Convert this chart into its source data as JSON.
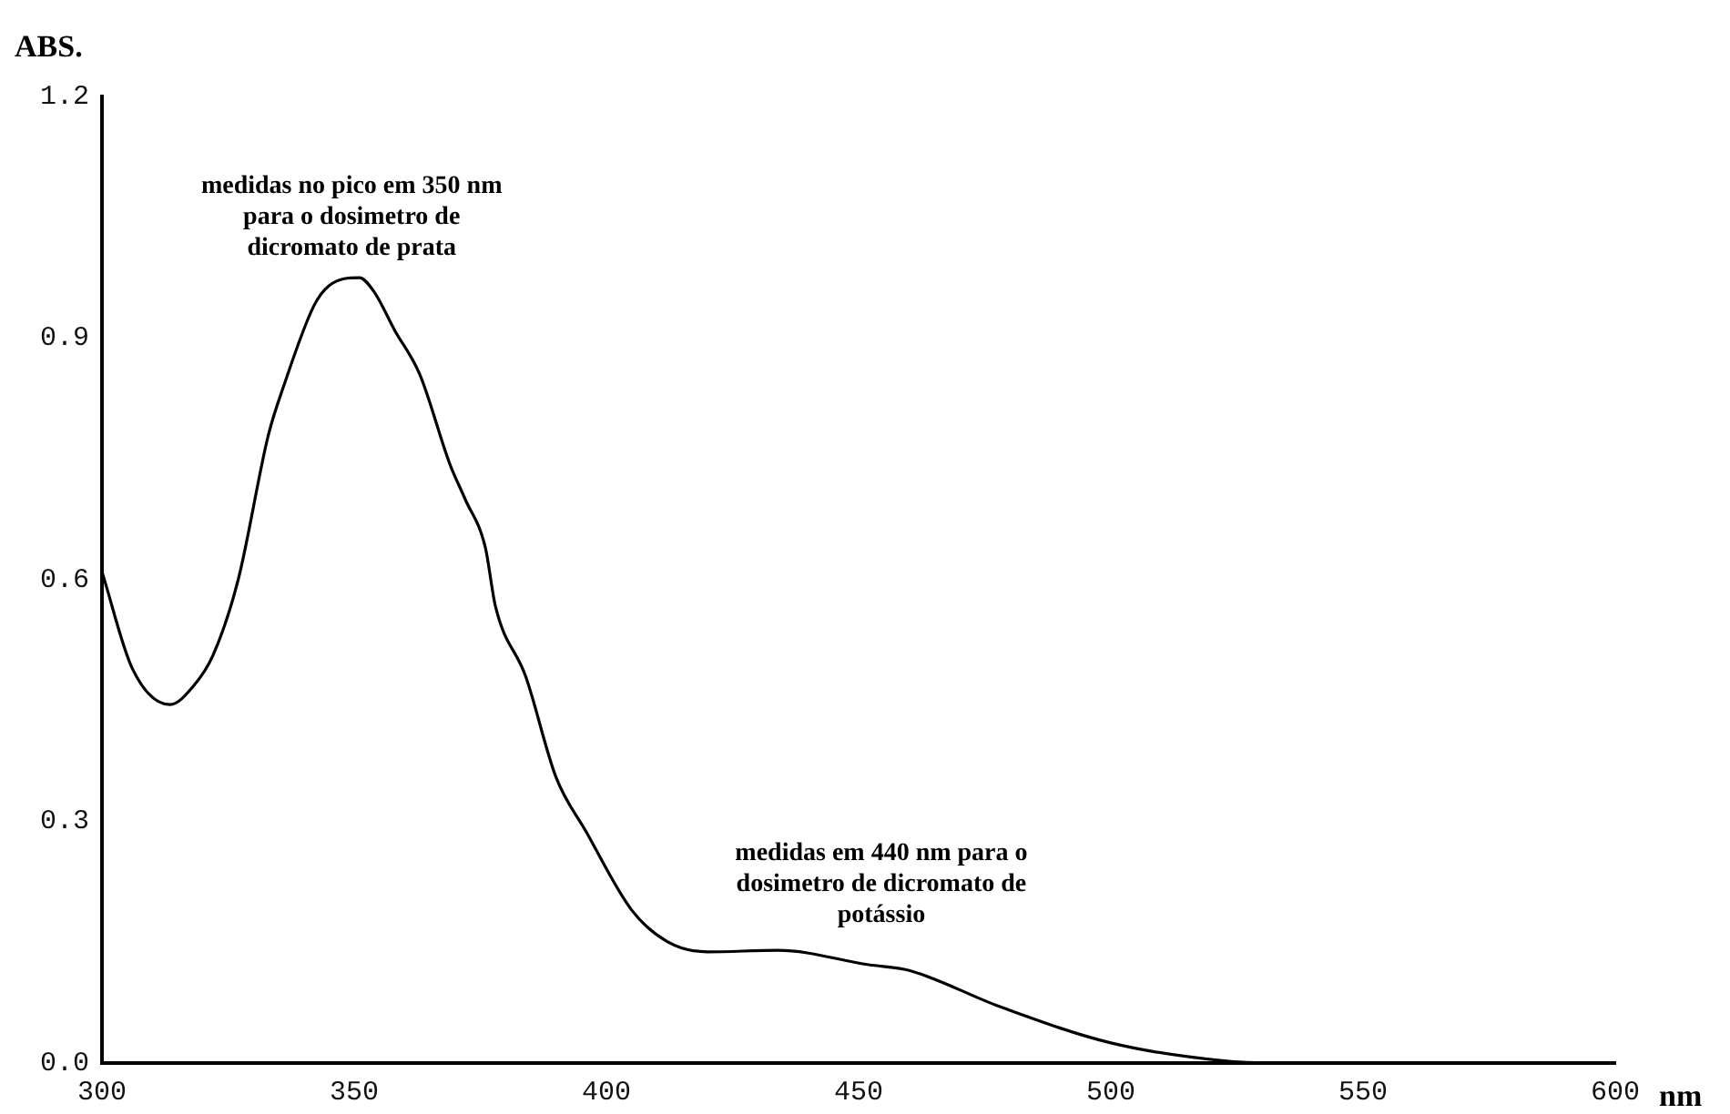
{
  "chart_data": {
    "type": "line",
    "xlabel": "nm",
    "ylabel": "ABS.",
    "x": [
      300,
      306,
      313.5,
      318,
      322,
      327,
      333,
      336,
      342,
      345,
      351,
      354,
      358,
      363,
      369,
      372,
      376,
      378,
      384,
      390,
      396,
      405,
      412,
      420,
      434,
      452,
      460,
      478,
      500,
      522,
      533,
      600
    ],
    "series": [
      {
        "color": "#000000",
        "values": [
          0.61,
          0.49,
          0.445,
          0.467,
          0.506,
          0.6,
          0.78,
          0.84,
          0.94,
          0.965,
          0.975,
          0.957,
          0.91,
          0.855,
          0.743,
          0.7,
          0.64,
          0.567,
          0.48,
          0.355,
          0.287,
          0.19,
          0.151,
          0.138,
          0.14,
          0.122,
          0.115,
          0.07,
          0.025,
          0.003,
          0,
          0
        ]
      }
    ],
    "xlim": [
      300,
      600
    ],
    "xticks": [
      300,
      350,
      400,
      450,
      500,
      550,
      600
    ],
    "ylim": [
      0,
      1.2
    ],
    "yticks": [
      {
        "value": 0,
        "label": "0.0"
      },
      {
        "value": 0.3,
        "label": "0.3"
      },
      {
        "value": 0.6,
        "label": "0.6"
      },
      {
        "value": 0.9,
        "label": "0.9"
      },
      {
        "value": 1.2,
        "label": "1.2"
      }
    ],
    "grid": false,
    "legend": false,
    "marker": "none",
    "line_style": "solid",
    "annotations": [
      "medidas no pico em 350 nm\npara o dosimetro de\ndicromato de prata",
      "medidas em 440 nm para o\ndosimetro de dicromato de\npotássio"
    ]
  }
}
